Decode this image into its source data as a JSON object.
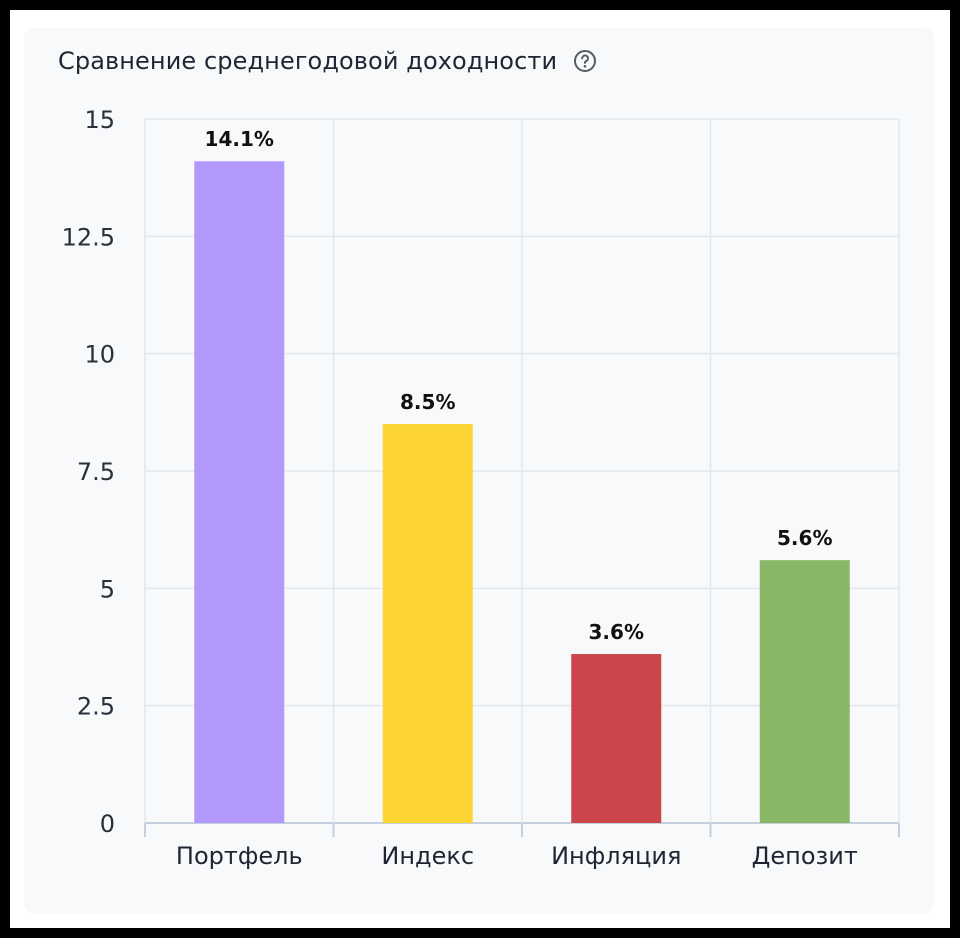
{
  "card": {
    "title": "Сравнение среднегодовой доходности",
    "help_icon": "question-circle-icon"
  },
  "chart_data": {
    "type": "bar",
    "categories": [
      "Портфель",
      "Индекс",
      "Инфляция",
      "Депозит"
    ],
    "values": [
      14.1,
      8.5,
      3.6,
      5.6
    ],
    "data_labels": [
      "14.1%",
      "8.5%",
      "3.6%",
      "5.6%"
    ],
    "colors": [
      "#b398fb",
      "#fcd431",
      "#cb464a",
      "#88b767"
    ],
    "y_ticks": [
      0,
      2.5,
      5,
      7.5,
      10,
      12.5,
      15
    ],
    "y_tick_labels": [
      "0",
      "2.5",
      "5",
      "7.5",
      "10",
      "12.5",
      "15"
    ],
    "ylim": [
      0,
      15
    ],
    "grid": true,
    "title": "Сравнение среднегодовой доходности",
    "xlabel": "",
    "ylabel": ""
  }
}
